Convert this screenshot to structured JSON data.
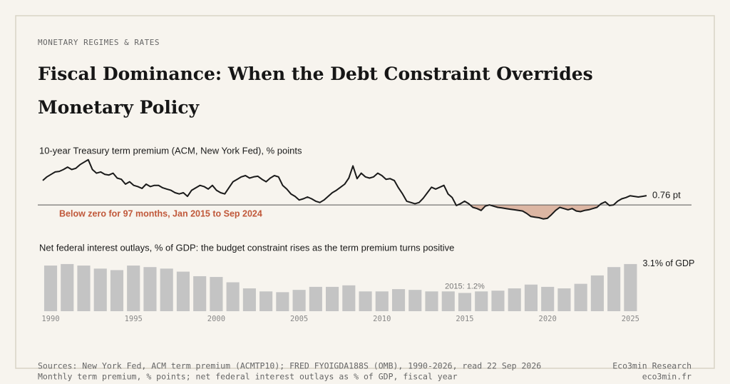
{
  "header": {
    "kicker": "MONETARY REGIMES & RATES",
    "title": "Fiscal Dominance: When the Debt Constraint Overrides Monetary Policy"
  },
  "chart_data": [
    {
      "type": "line",
      "title": "10-year Treasury term premium (ACM, New York Fed), % points",
      "annotation": "Below zero for 97 months, Jan 2015 to Sep 2024",
      "end_label": "0.76 pt",
      "color": "#1a1a1a",
      "shade_color": "#dcb6a3",
      "annotation_color": "#c0583a",
      "xlim": [
        1990,
        2026.5
      ],
      "ylim": [
        -1.4,
        4.0
      ],
      "x": [
        1990,
        1990.25,
        1990.5,
        1990.75,
        1991,
        1991.25,
        1991.5,
        1991.75,
        1992,
        1992.25,
        1992.5,
        1992.75,
        1993,
        1993.25,
        1993.5,
        1993.75,
        1994,
        1994.25,
        1994.5,
        1994.75,
        1995,
        1995.25,
        1995.5,
        1995.75,
        1996,
        1996.25,
        1996.5,
        1996.75,
        1997,
        1997.25,
        1997.5,
        1997.75,
        1998,
        1998.25,
        1998.5,
        1998.75,
        1999,
        1999.25,
        1999.5,
        1999.75,
        2000,
        2000.25,
        2000.5,
        2000.75,
        2001,
        2001.25,
        2001.5,
        2001.75,
        2002,
        2002.25,
        2002.5,
        2002.75,
        2003,
        2003.25,
        2003.5,
        2003.75,
        2004,
        2004.25,
        2004.5,
        2004.75,
        2005,
        2005.25,
        2005.5,
        2005.75,
        2006,
        2006.25,
        2006.5,
        2006.75,
        2007,
        2007.25,
        2007.5,
        2007.75,
        2008,
        2008.25,
        2008.5,
        2008.75,
        2009,
        2009.25,
        2009.5,
        2009.75,
        2010,
        2010.25,
        2010.5,
        2010.75,
        2011,
        2011.25,
        2011.5,
        2011.75,
        2012,
        2012.25,
        2012.5,
        2012.75,
        2013,
        2013.25,
        2013.5,
        2013.75,
        2014,
        2014.25,
        2014.5,
        2014.75,
        2015,
        2015.25,
        2015.5,
        2015.75,
        2016,
        2016.25,
        2016.5,
        2016.75,
        2017,
        2017.25,
        2017.5,
        2017.75,
        2018,
        2018.25,
        2018.5,
        2018.75,
        2019,
        2019.25,
        2019.5,
        2019.75,
        2020,
        2020.25,
        2020.5,
        2020.75,
        2021,
        2021.25,
        2021.5,
        2021.75,
        2022,
        2022.25,
        2022.5,
        2022.75,
        2023,
        2023.25,
        2023.5,
        2023.75,
        2024,
        2024.25,
        2024.5,
        2024.75,
        2025,
        2025.25,
        2025.5,
        2025.75,
        2026,
        2026.25,
        2026.5
      ],
      "values": [
        2.0,
        2.3,
        2.5,
        2.7,
        2.75,
        2.9,
        3.1,
        2.9,
        3.0,
        3.3,
        3.5,
        3.7,
        2.9,
        2.6,
        2.7,
        2.5,
        2.45,
        2.6,
        2.2,
        2.1,
        1.7,
        1.9,
        1.6,
        1.5,
        1.35,
        1.7,
        1.5,
        1.6,
        1.6,
        1.4,
        1.3,
        1.2,
        1.0,
        0.9,
        1.0,
        0.7,
        1.2,
        1.4,
        1.6,
        1.5,
        1.3,
        1.6,
        1.2,
        1.0,
        0.9,
        1.4,
        1.9,
        2.1,
        2.3,
        2.4,
        2.2,
        2.3,
        2.35,
        2.1,
        1.9,
        2.2,
        2.4,
        2.3,
        1.6,
        1.3,
        0.9,
        0.7,
        0.4,
        0.5,
        0.65,
        0.5,
        0.3,
        0.2,
        0.4,
        0.7,
        1.0,
        1.2,
        1.45,
        1.7,
        2.2,
        3.2,
        2.15,
        2.6,
        2.3,
        2.2,
        2.3,
        2.6,
        2.4,
        2.1,
        2.15,
        2.0,
        1.4,
        0.9,
        0.3,
        0.2,
        0.1,
        0.2,
        0.55,
        1.0,
        1.45,
        1.3,
        1.45,
        1.6,
        0.9,
        0.6,
        -0.05,
        0.1,
        0.3,
        0.1,
        -0.2,
        -0.3,
        -0.45,
        -0.1,
        0.0,
        -0.1,
        -0.2,
        -0.25,
        -0.3,
        -0.35,
        -0.4,
        -0.45,
        -0.5,
        -0.7,
        -0.95,
        -1.0,
        -1.05,
        -1.15,
        -1.1,
        -0.8,
        -0.45,
        -0.2,
        -0.3,
        -0.4,
        -0.3,
        -0.5,
        -0.55,
        -0.45,
        -0.4,
        -0.3,
        -0.2,
        0.1,
        0.25,
        -0.05,
        0.0,
        0.3,
        0.5,
        0.6,
        0.75,
        0.7,
        0.65,
        0.7,
        0.76
      ]
    },
    {
      "type": "bar",
      "title": "Net federal interest outlays, % of GDP: the budget constraint rises as the term premium turns positive",
      "color": "#c4c4c4",
      "xlim": [
        1989.5,
        2025.5
      ],
      "ylim": [
        0,
        3.2
      ],
      "x": [
        1990,
        1991,
        1992,
        1993,
        1994,
        1995,
        1996,
        1997,
        1998,
        1999,
        2000,
        2001,
        2002,
        2003,
        2004,
        2005,
        2006,
        2007,
        2008,
        2009,
        2010,
        2011,
        2012,
        2013,
        2014,
        2015,
        2016,
        2017,
        2018,
        2019,
        2020,
        2021,
        2022,
        2023,
        2024,
        2025
      ],
      "values": [
        3.0,
        3.1,
        3.0,
        2.8,
        2.7,
        3.0,
        2.9,
        2.8,
        2.6,
        2.3,
        2.25,
        1.9,
        1.5,
        1.3,
        1.25,
        1.4,
        1.6,
        1.6,
        1.7,
        1.3,
        1.3,
        1.45,
        1.4,
        1.3,
        1.3,
        1.2,
        1.3,
        1.35,
        1.5,
        1.75,
        1.6,
        1.5,
        1.8,
        2.35,
        2.9,
        3.1
      ],
      "value_labels": [
        null,
        null,
        null,
        null,
        null,
        null,
        null,
        null,
        null,
        null,
        null,
        null,
        null,
        null,
        null,
        null,
        null,
        null,
        null,
        null,
        null,
        null,
        null,
        null,
        null,
        "2015: 1.2%",
        null,
        null,
        null,
        null,
        null,
        null,
        null,
        null,
        null,
        "3.1% of GDP"
      ],
      "xticks": [
        1990,
        1995,
        2000,
        2005,
        2010,
        2015,
        2020,
        2025
      ]
    }
  ],
  "footer": {
    "sources": "Sources: New York Fed, ACM term premium (ACMTP10); FRED FYOIGDA188S (OMB), 1990-2026, read 22 Sep 2026",
    "notes": "Monthly term premium, % points; net federal interest outlays as % of GDP, fiscal year",
    "brand": "Eco3min Research",
    "site": "eco3min.fr"
  }
}
